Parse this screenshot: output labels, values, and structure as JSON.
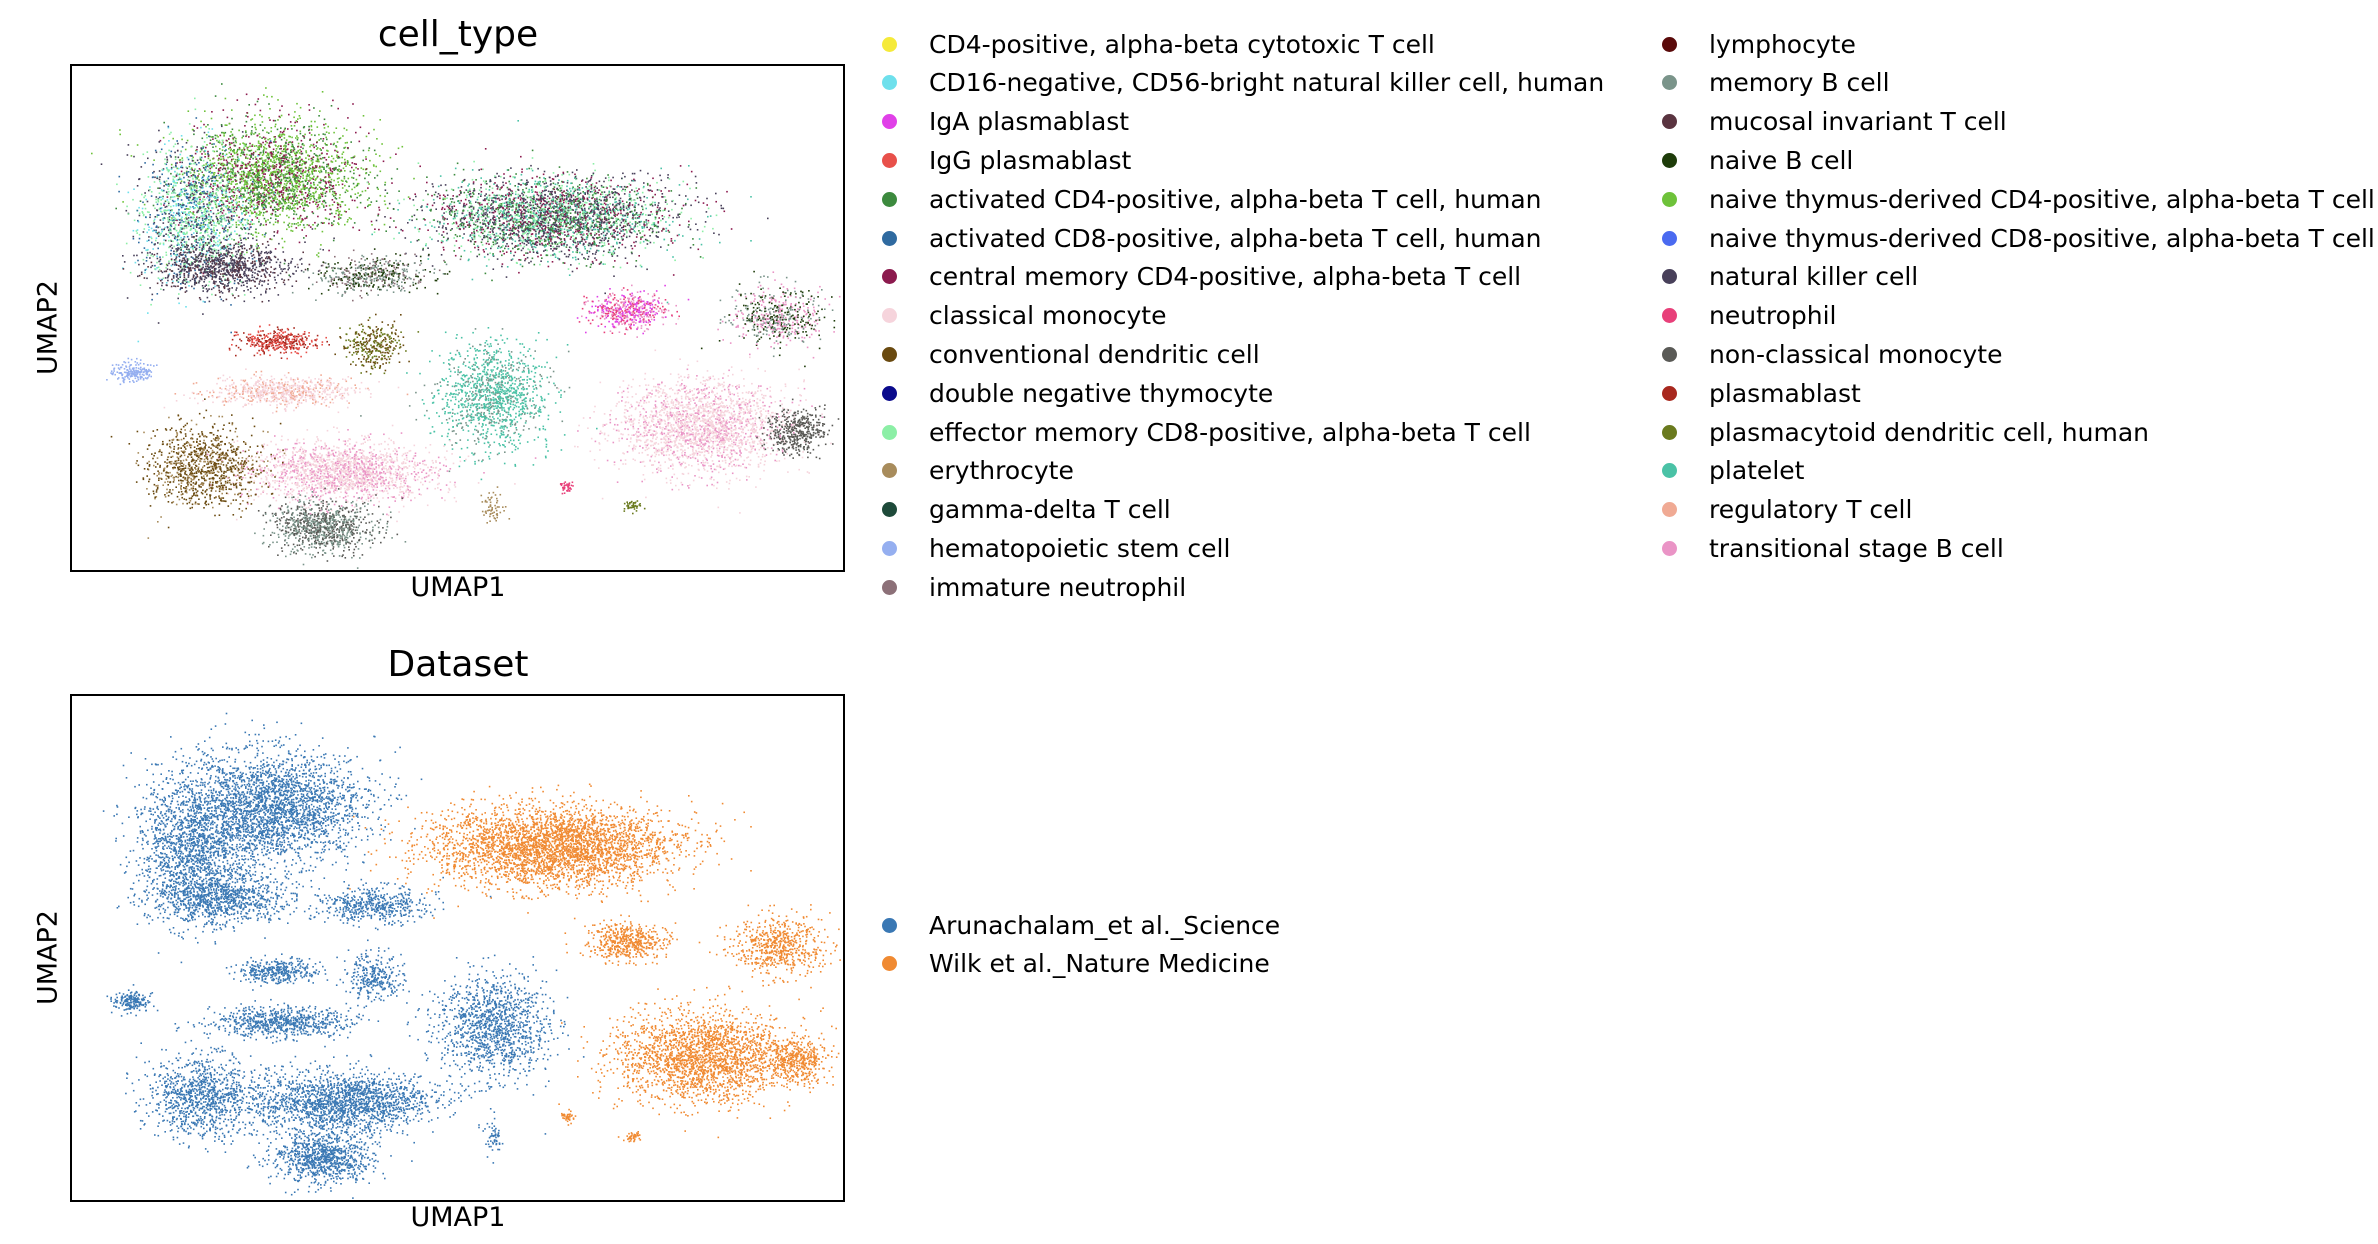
{
  "chart_data": [
    {
      "type": "scatter",
      "title": "cell_type",
      "xlabel": "UMAP1",
      "ylabel": "UMAP2",
      "xticks": false,
      "yticks": false,
      "legend_placement": "right",
      "categories": [
        {
          "name": "CD4-positive, alpha-beta cytotoxic T cell",
          "color": "#f5ea3a"
        },
        {
          "name": "CD16-negative, CD56-bright natural killer cell, human",
          "color": "#6ee0ec"
        },
        {
          "name": "IgA plasmablast",
          "color": "#e040e8"
        },
        {
          "name": "IgG plasmablast",
          "color": "#e8504a"
        },
        {
          "name": "activated CD4-positive, alpha-beta T cell, human",
          "color": "#3c8a3e"
        },
        {
          "name": "activated CD8-positive, alpha-beta T cell, human",
          "color": "#2f6aa0"
        },
        {
          "name": "central memory CD4-positive, alpha-beta T cell",
          "color": "#8c1a4e"
        },
        {
          "name": "classical monocyte",
          "color": "#f6d4dc"
        },
        {
          "name": "conventional dendritic cell",
          "color": "#6a4a10"
        },
        {
          "name": "double negative thymocyte",
          "color": "#0a0a8c"
        },
        {
          "name": "effector memory CD8-positive, alpha-beta T cell",
          "color": "#8cefa6"
        },
        {
          "name": "erythrocyte",
          "color": "#a88c5c"
        },
        {
          "name": "gamma-delta T cell",
          "color": "#1e4a3a"
        },
        {
          "name": "hematopoietic stem cell",
          "color": "#95aff0"
        },
        {
          "name": "immature neutrophil",
          "color": "#8c7078"
        },
        {
          "name": "lymphocyte",
          "color": "#5a0a0a"
        },
        {
          "name": "memory B cell",
          "color": "#7a948a"
        },
        {
          "name": "mucosal invariant T cell",
          "color": "#5a3440"
        },
        {
          "name": "naive B cell",
          "color": "#1e3c0a"
        },
        {
          "name": "naive thymus-derived CD4-positive, alpha-beta T cell",
          "color": "#6ec23a"
        },
        {
          "name": "naive thymus-derived CD8-positive, alpha-beta T cell",
          "color": "#4a6af0"
        },
        {
          "name": "natural killer cell",
          "color": "#48405a"
        },
        {
          "name": "neutrophil",
          "color": "#e8407a"
        },
        {
          "name": "non-classical monocyte",
          "color": "#5a5a56"
        },
        {
          "name": "plasmablast",
          "color": "#a8281e"
        },
        {
          "name": "plasmacytoid dendritic cell, human",
          "color": "#6a7a1e"
        },
        {
          "name": "platelet",
          "color": "#4ac2a6"
        },
        {
          "name": "regulatory T cell",
          "color": "#f0aa94"
        },
        {
          "name": "transitional stage B cell",
          "color": "#ea94c6"
        }
      ]
    },
    {
      "type": "scatter",
      "title": "Dataset",
      "xlabel": "UMAP1",
      "ylabel": "UMAP2",
      "xticks": false,
      "yticks": false,
      "legend_placement": "right",
      "categories": [
        {
          "name": "Arunachalam_et al._Science",
          "color": "#3a78b4"
        },
        {
          "name": "Wilk et al._Nature Medicine",
          "color": "#f08a32"
        }
      ]
    }
  ]
}
